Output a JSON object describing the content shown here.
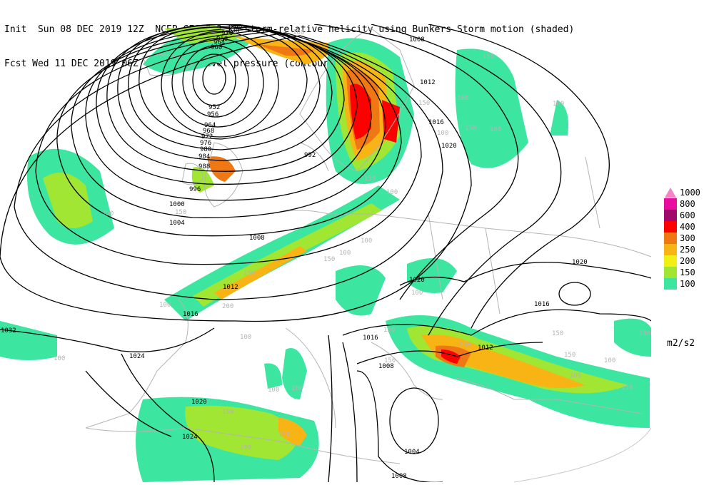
{
  "header": {
    "line1": "Init  Sun 08 DEC 2019 12Z  NCEP GFS 0-3 km storm-relative helicity using Bunkers Storm motion (shaded)",
    "line2": "Fcst Wed 11 DEC 2019 06Z  mean sea level pressure (contours)"
  },
  "legend": {
    "units": "m2/s2",
    "items": [
      {
        "label": "1000",
        "color": "#f484c4"
      },
      {
        "label": "800",
        "color": "#e80ca0"
      },
      {
        "label": "600",
        "color": "#a00a6a"
      },
      {
        "label": "400",
        "color": "#ff0000"
      },
      {
        "label": "300",
        "color": "#f07814"
      },
      {
        "label": "250",
        "color": "#f8b414"
      },
      {
        "label": "200",
        "color": "#f0f014"
      },
      {
        "label": "150",
        "color": "#a0e632"
      },
      {
        "label": "100",
        "color": "#3ce6a0"
      }
    ]
  },
  "isobar_labels": [
    {
      "text": "980"
    },
    {
      "text": "976"
    },
    {
      "text": "968"
    },
    {
      "text": "964"
    },
    {
      "text": "960"
    },
    {
      "text": "952"
    },
    {
      "text": "956"
    },
    {
      "text": "964"
    },
    {
      "text": "968"
    },
    {
      "text": "972"
    },
    {
      "text": "976"
    },
    {
      "text": "980"
    },
    {
      "text": "984"
    },
    {
      "text": "988"
    },
    {
      "text": "992"
    },
    {
      "text": "996"
    },
    {
      "text": "1000"
    },
    {
      "text": "1004"
    },
    {
      "text": "1008"
    },
    {
      "text": "1008"
    },
    {
      "text": "1012"
    },
    {
      "text": "1016"
    },
    {
      "text": "1020"
    },
    {
      "text": "1012"
    },
    {
      "text": "1016"
    },
    {
      "text": "1020"
    },
    {
      "text": "1020"
    },
    {
      "text": "1016"
    },
    {
      "text": "1016"
    },
    {
      "text": "1012"
    },
    {
      "text": "1008"
    },
    {
      "text": "1032"
    },
    {
      "text": "1024"
    },
    {
      "text": "1020"
    },
    {
      "text": "1024"
    },
    {
      "text": "1004"
    },
    {
      "text": "1008"
    }
  ],
  "shade_labels": [
    {
      "text": "100"
    },
    {
      "text": "150"
    },
    {
      "text": "100"
    },
    {
      "text": "150"
    },
    {
      "text": "100"
    },
    {
      "text": "100"
    },
    {
      "text": "150"
    },
    {
      "text": "100"
    },
    {
      "text": "150"
    },
    {
      "text": "100"
    },
    {
      "text": "150"
    },
    {
      "text": "150"
    },
    {
      "text": "100"
    },
    {
      "text": "100"
    },
    {
      "text": "150"
    },
    {
      "text": "100"
    },
    {
      "text": "150"
    },
    {
      "text": "100"
    },
    {
      "text": "200"
    },
    {
      "text": "150"
    },
    {
      "text": "250"
    },
    {
      "text": "150"
    },
    {
      "text": "150"
    },
    {
      "text": "100"
    },
    {
      "text": "100"
    },
    {
      "text": "150"
    },
    {
      "text": "100"
    },
    {
      "text": "100"
    },
    {
      "text": "150"
    },
    {
      "text": "100"
    },
    {
      "text": "150"
    },
    {
      "text": "100"
    },
    {
      "text": "100"
    },
    {
      "text": "100"
    },
    {
      "text": "150"
    }
  ]
}
